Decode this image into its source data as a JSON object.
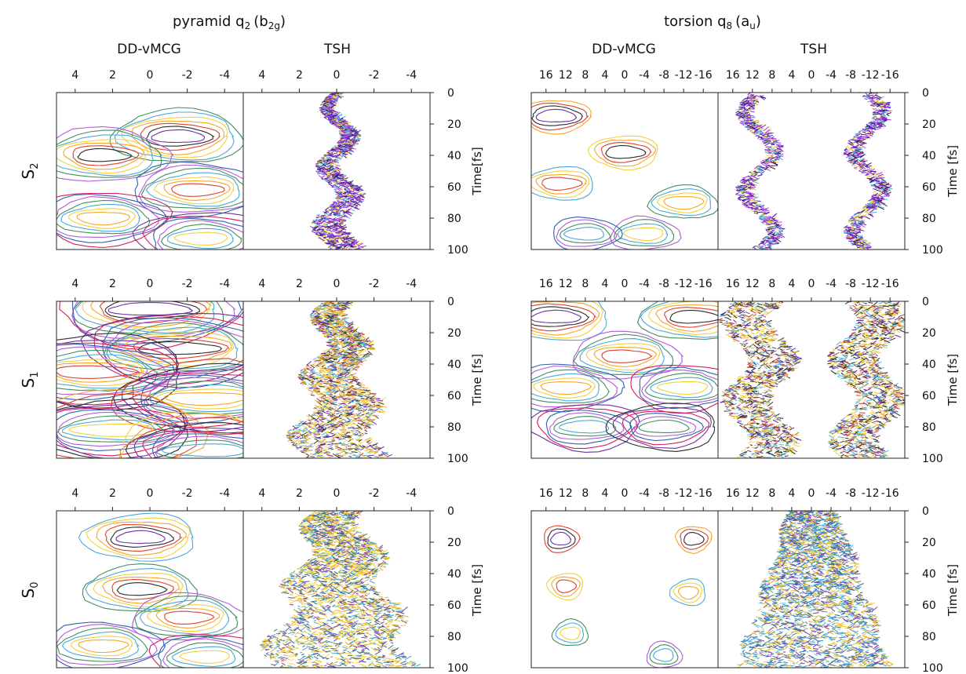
{
  "chart_data": {
    "type": "heatmap",
    "groups": [
      {
        "title": "pyramid q₂ (b₂g)",
        "title_main": "pyramid q",
        "title_sub": "2",
        "title_paren": "(b",
        "title_paren_sub": "2g",
        "title_close": ")"
      },
      {
        "title": "torsion q₈ (aᵤ)",
        "title_main": "torsion q",
        "title_sub": "8",
        "title_paren": "(a",
        "title_paren_sub": "u",
        "title_close": ")"
      }
    ],
    "column_headers": [
      "DD-vMCG",
      "TSH",
      "DD-vMCG",
      "TSH"
    ],
    "row_labels": [
      {
        "main": "S",
        "sub": "2"
      },
      {
        "main": "S",
        "sub": "1"
      },
      {
        "main": "S",
        "sub": "0"
      }
    ],
    "y_axis": {
      "label": "Time [fs]",
      "label_compact": "Time[fs]",
      "range": [
        0,
        100
      ],
      "ticks": [
        "0",
        "20",
        "40",
        "60",
        "80",
        "100"
      ],
      "inverted": true
    },
    "x_axis_pyramid": {
      "range": [
        5,
        -5
      ],
      "ticks": [
        "4",
        "2",
        "0",
        "-2",
        "-4"
      ]
    },
    "x_axis_torsion": {
      "range": [
        19,
        -19
      ],
      "ticks": [
        "16",
        "12",
        "8",
        "4",
        "0",
        "-4",
        "-8",
        "-12",
        "-16"
      ]
    },
    "panels": [
      {
        "row": 0,
        "col": 0,
        "kind": "contour",
        "centers": [
          [
            28,
            -1.5
          ],
          [
            40,
            2.5
          ],
          [
            62,
            -2.5
          ],
          [
            80,
            2.5
          ],
          [
            93,
            -2.8
          ]
        ],
        "width": 1.4,
        "gap": 0.35,
        "nlev": 7
      },
      {
        "row": 0,
        "col": 1,
        "kind": "scatter",
        "palette": "purple",
        "wx": 0.7,
        "dens": 1400,
        "x0": 0
      },
      {
        "row": 0,
        "col": 2,
        "kind": "contour",
        "centers": [
          [
            15,
            14
          ],
          [
            38,
            0
          ],
          [
            58,
            13
          ],
          [
            70,
            -12
          ],
          [
            90,
            -4
          ],
          [
            90,
            8
          ]
        ],
        "width": 4,
        "gap": 1,
        "nlev": 4
      },
      {
        "row": 0,
        "col": 3,
        "kind": "scatter",
        "palette": "purple",
        "wx": 1.6,
        "dens": 1500,
        "split": true
      },
      {
        "row": 1,
        "col": 0,
        "kind": "contour",
        "centers": [
          [
            5,
            0
          ],
          [
            30,
            -1.5
          ],
          [
            45,
            3
          ],
          [
            62,
            -3
          ],
          [
            82,
            2
          ],
          [
            95,
            -3
          ]
        ],
        "width": 2.2,
        "gap": 0.3,
        "nlev": 10
      },
      {
        "row": 1,
        "col": 1,
        "kind": "scatter",
        "palette": "orange",
        "wx": 1.8,
        "dens": 2200,
        "x0": 0
      },
      {
        "row": 1,
        "col": 2,
        "kind": "contour",
        "centers": [
          [
            10,
            14
          ],
          [
            10,
            -14
          ],
          [
            35,
            0
          ],
          [
            55,
            12
          ],
          [
            55,
            -12
          ],
          [
            80,
            8
          ],
          [
            80,
            -8
          ]
        ],
        "width": 5,
        "gap": 1.2,
        "nlev": 6
      },
      {
        "row": 1,
        "col": 3,
        "kind": "scatter",
        "palette": "mixed",
        "wx": 5,
        "dens": 2600,
        "split": true
      },
      {
        "row": 2,
        "col": 0,
        "kind": "contour",
        "centers": [
          [
            17,
            0.5
          ],
          [
            50,
            0.5
          ],
          [
            68,
            -2
          ],
          [
            86,
            2.5
          ],
          [
            93,
            -3
          ]
        ],
        "width": 1.3,
        "gap": 0.35,
        "nlev": 6
      },
      {
        "row": 2,
        "col": 1,
        "kind": "scatter",
        "palette": "yellow",
        "wx": 3,
        "dens": 2600,
        "x0": 0
      },
      {
        "row": 2,
        "col": 2,
        "kind": "contour",
        "centers": [
          [
            18,
            13
          ],
          [
            18,
            -14
          ],
          [
            48,
            12
          ],
          [
            52,
            -13
          ],
          [
            78,
            11
          ],
          [
            92,
            -8
          ]
        ],
        "width": 2,
        "gap": 0.8,
        "nlev": 3
      },
      {
        "row": 2,
        "col": 3,
        "kind": "scatter",
        "palette": "blue",
        "wx": 12,
        "dens": 2800,
        "x0": 0
      }
    ],
    "palettes": {
      "contour": [
        "#7030a0",
        "#2b2b2b",
        "#e0402c",
        "#f2a72a",
        "#f4d03f",
        "#4aa8d8",
        "#3f8f5f",
        "#b35ad8",
        "#2f5fb0",
        "#d81b60"
      ],
      "purple": [
        "#6a1fb0",
        "#8e2bd0",
        "#3c1466",
        "#a04ae0",
        "#f2d23c",
        "#48b6d8"
      ],
      "orange": [
        "#e59a2c",
        "#f0b23c",
        "#4fb3d9",
        "#7a2ab0",
        "#ede05a",
        "#3a3a3a"
      ],
      "yellow": [
        "#f0c93a",
        "#e6b02c",
        "#f5dc5a",
        "#4aa8c8",
        "#2e6f8e",
        "#7a3fb0"
      ],
      "blue": [
        "#3a8fc8",
        "#f0c93a",
        "#2b6f9e",
        "#e6b02c",
        "#7a3fb0",
        "#5bc0de"
      ],
      "mixed": [
        "#f0d04a",
        "#e8c040",
        "#4fb3d9",
        "#5a2a9a",
        "#2a2a2a",
        "#c04a3a"
      ]
    }
  }
}
